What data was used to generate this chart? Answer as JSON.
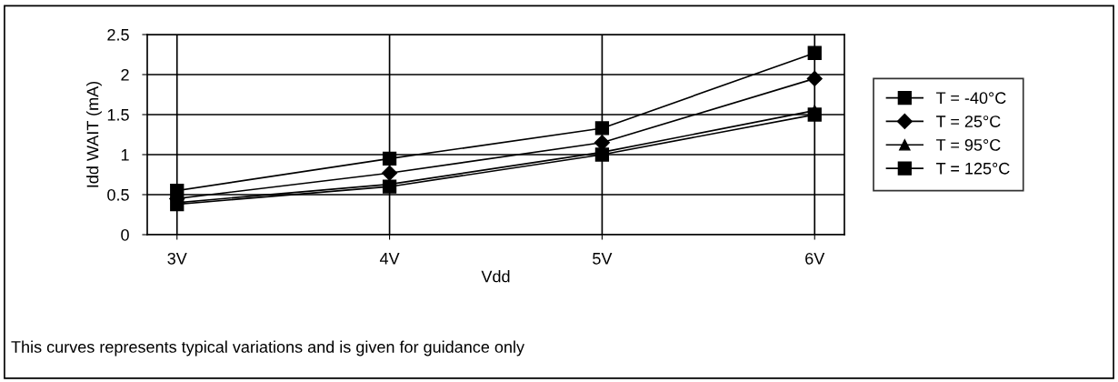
{
  "chart_data": {
    "type": "line",
    "xlabel": "Vdd",
    "ylabel": "Idd WAIT (mA)",
    "categories": [
      "3V",
      "4V",
      "5V",
      "6V"
    ],
    "series": [
      {
        "name": "T = -40°C",
        "color": "#000000",
        "marker": "square",
        "values": [
          0.55,
          0.95,
          1.33,
          2.27
        ]
      },
      {
        "name": "T = 25°C",
        "color": "#000000",
        "marker": "diamond",
        "values": [
          0.45,
          0.77,
          1.15,
          1.95
        ]
      },
      {
        "name": "T = 95°C",
        "color": "#000000",
        "marker": "triangle",
        "values": [
          0.4,
          0.63,
          1.03,
          1.55
        ]
      },
      {
        "name": "T = 125°C",
        "color": "#000000",
        "marker": "square",
        "values": [
          0.38,
          0.6,
          1.0,
          1.5
        ]
      }
    ],
    "ylim": [
      0,
      2.5
    ],
    "yticks": [
      0,
      {
        "value": 0.5,
        "label": "0.5"
      },
      1,
      {
        "value": 1.5,
        "label": "1.5"
      },
      2,
      {
        "value": 2.5,
        "label": "2.5"
      }
    ],
    "grid": true,
    "legend": "right",
    "line_style": "solid",
    "annotations": [
      "This curves represents typical variations and is given for guidance only"
    ]
  }
}
